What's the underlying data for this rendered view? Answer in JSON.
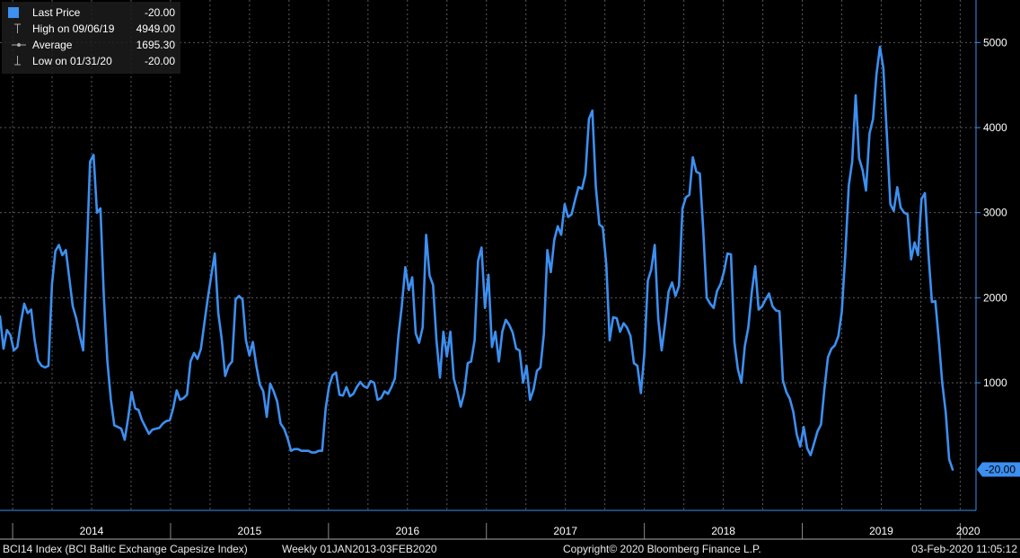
{
  "chart_data": {
    "type": "line",
    "title": "BCI14 Index (BCI Baltic Exchange Capesize Index)",
    "frequency": "Weekly",
    "date_range": "01JAN2013-03FEB2020",
    "x_start_year": 2013.92,
    "x_end_year": 2020.1,
    "ylim": [
      -500,
      5500
    ],
    "yticks": [
      5000,
      4000,
      3000,
      2000,
      1000
    ],
    "xtick_labels": [
      "2014",
      "2015",
      "2016",
      "2017",
      "2018",
      "2019",
      "2020"
    ],
    "grid": true,
    "series_color": "#3d8ff0",
    "last_value_label": "-20.00",
    "series": [
      {
        "name": "Last Price",
        "values": [
          1780,
          1400,
          1620,
          1560,
          1380,
          1420,
          1700,
          1930,
          1820,
          1860,
          1500,
          1260,
          1200,
          1180,
          1200,
          2160,
          2550,
          2620,
          2500,
          2560,
          2230,
          1900,
          1760,
          1560,
          1380,
          2470,
          3600,
          3680,
          3000,
          3050,
          2000,
          1250,
          800,
          500,
          480,
          460,
          330,
          590,
          890,
          700,
          680,
          560,
          480,
          400,
          450,
          460,
          470,
          520,
          550,
          560,
          700,
          910,
          800,
          820,
          860,
          1250,
          1350,
          1280,
          1400,
          1700,
          2000,
          2260,
          2520,
          1820,
          1520,
          1080,
          1200,
          1250,
          1980,
          2020,
          1980,
          1500,
          1320,
          1480,
          1200,
          980,
          900,
          600,
          990,
          900,
          780,
          520,
          460,
          350,
          200,
          220,
          220,
          200,
          200,
          200,
          180,
          180,
          200,
          200,
          700,
          960,
          1090,
          1120,
          860,
          850,
          950,
          840,
          870,
          950,
          1010,
          960,
          940,
          1020,
          1000,
          800,
          820,
          900,
          870,
          950,
          1050,
          1550,
          1900,
          2360,
          2090,
          2240,
          1580,
          1470,
          1650,
          2740,
          2260,
          2150,
          1500,
          1060,
          1600,
          1310,
          1600,
          1050,
          900,
          720,
          880,
          1230,
          1250,
          1500,
          2430,
          2590,
          1880,
          2270,
          1420,
          1600,
          1250,
          1600,
          1740,
          1680,
          1590,
          1400,
          1380,
          1000,
          1200,
          800,
          920,
          1140,
          1180,
          1570,
          2560,
          2300,
          2680,
          2840,
          2740,
          3100,
          2950,
          2980,
          3150,
          3300,
          3280,
          3450,
          4100,
          4200,
          3300,
          2860,
          2830,
          2400,
          1500,
          1770,
          1760,
          1600,
          1700,
          1650,
          1550,
          1230,
          1200,
          880,
          1340,
          2200,
          2330,
          2620,
          1750,
          1380,
          1700,
          2070,
          2180,
          2020,
          2140,
          3050,
          3180,
          3210,
          3650,
          3480,
          3460,
          2800,
          2000,
          1930,
          1880,
          2080,
          2160,
          2310,
          2520,
          2510,
          1480,
          1160,
          1000,
          1430,
          1650,
          2060,
          2370,
          1860,
          1900,
          1980,
          2050,
          1900,
          1850,
          1840,
          1030,
          890,
          810,
          660,
          390,
          250,
          480,
          230,
          150,
          290,
          430,
          510,
          930,
          1300,
          1400,
          1440,
          1550,
          1830,
          2500,
          3320,
          3600,
          4380,
          3640,
          3500,
          3260,
          3930,
          4100,
          4620,
          4950,
          4700,
          3920,
          3100,
          3020,
          3300,
          3060,
          3000,
          2980,
          2450,
          2650,
          2500,
          3160,
          3230,
          2520,
          1950,
          1960,
          1500,
          1000,
          650,
          100,
          -20
        ]
      }
    ],
    "legend": {
      "entries": [
        {
          "label": "Last Price",
          "value": "-20.00",
          "icon": "square-swatch-icon"
        },
        {
          "label": "High on 09/06/19",
          "value": "4949.00",
          "icon": "high-marker-icon"
        },
        {
          "label": "Average",
          "value": "1695.30",
          "icon": "average-line-icon"
        },
        {
          "label": "Low on 01/31/20",
          "value": "-20.00",
          "icon": "low-marker-icon"
        }
      ]
    }
  },
  "footer": {
    "security": "BCI14 Index (BCI Baltic Exchange Capesize Index)",
    "frequency_range": "Weekly 01JAN2013-03FEB2020",
    "copyright": "Copyright© 2020 Bloomberg Finance L.P.",
    "timestamp": "03-Feb-2020 11:05:12"
  },
  "colors": {
    "background": "#000000",
    "grid": "#5a5a5a",
    "axis": "#3d8ff0",
    "line": "#3d8ff0"
  }
}
